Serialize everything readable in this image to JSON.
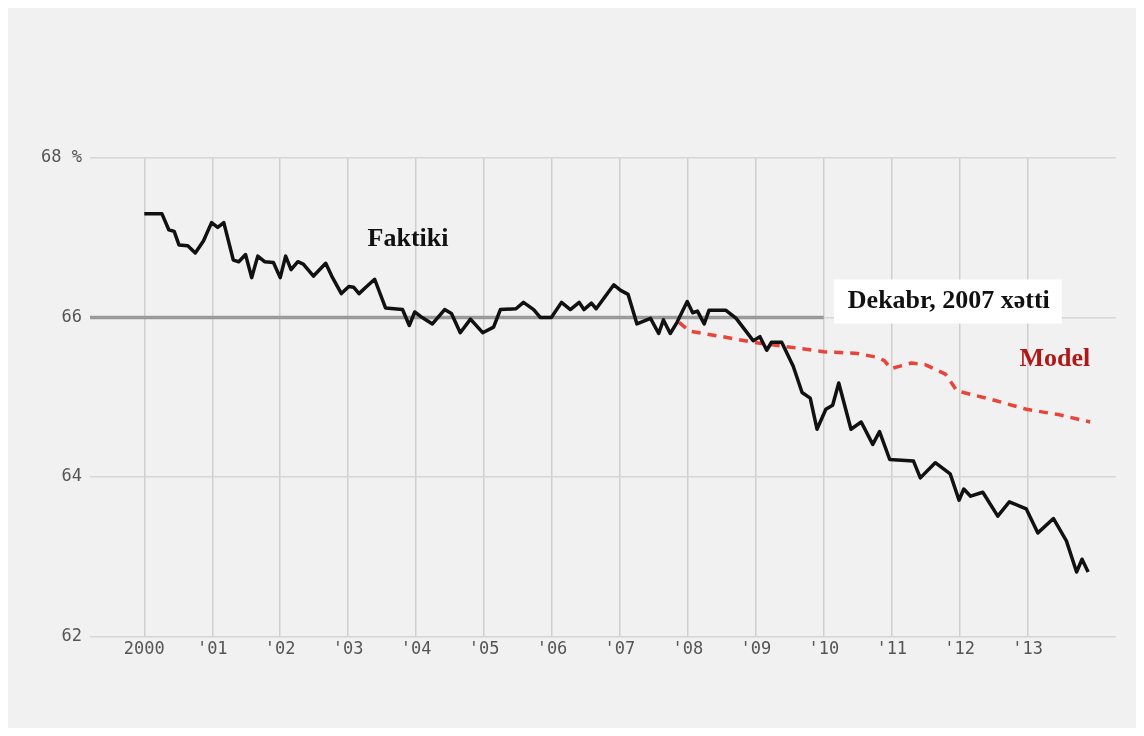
{
  "chart_data": {
    "type": "line",
    "xlim": [
      1999.2,
      2014.3
    ],
    "xticks": [
      {
        "value": 2000,
        "label": "2000"
      },
      {
        "value": 2001,
        "label": "'01"
      },
      {
        "value": 2002,
        "label": "'02"
      },
      {
        "value": 2003,
        "label": "'03"
      },
      {
        "value": 2004,
        "label": "'04"
      },
      {
        "value": 2005,
        "label": "'05"
      },
      {
        "value": 2006,
        "label": "'06"
      },
      {
        "value": 2007,
        "label": "'07"
      },
      {
        "value": 2008,
        "label": "'08"
      },
      {
        "value": 2009,
        "label": "'09"
      },
      {
        "value": 2010,
        "label": "'10"
      },
      {
        "value": 2011,
        "label": "'11"
      },
      {
        "value": 2012,
        "label": "'12"
      },
      {
        "value": 2013,
        "label": "'13"
      }
    ],
    "ylim": [
      62,
      68
    ],
    "yticks": [
      62,
      64,
      66,
      {
        "value": 68,
        "label": "68 %"
      }
    ],
    "grid": true,
    "legend": false,
    "marker": "none",
    "annotations": [
      {
        "text": "Dekabr, 2007 xətti",
        "x": 2010,
        "y": 66
      }
    ],
    "series": [
      {
        "name": "Faktiki",
        "color": "#111111",
        "line_style": "solid",
        "x": [
          2000.0,
          2000.26,
          2000.36,
          2000.44,
          2000.51,
          2000.64,
          2000.75,
          2000.87,
          2000.99,
          2001.08,
          2001.17,
          2001.31,
          2001.39,
          2001.49,
          2001.58,
          2001.67,
          2001.77,
          2001.9,
          2002.0,
          2002.08,
          2002.16,
          2002.26,
          2002.34,
          2002.49,
          2002.67,
          2002.77,
          2002.9,
          2003.01,
          2003.08,
          2003.16,
          2003.26,
          2003.39,
          2003.55,
          2003.8,
          2003.9,
          2003.98,
          2004.09,
          2004.24,
          2004.42,
          2004.52,
          2004.65,
          2004.8,
          2004.98,
          2005.14,
          2005.24,
          2005.47,
          2005.58,
          2005.73,
          2005.83,
          2005.99,
          2006.14,
          2006.27,
          2006.4,
          2006.47,
          2006.58,
          2006.65,
          2006.91,
          2007.01,
          2007.12,
          2007.25,
          2007.45,
          2007.57,
          2007.64,
          2007.74,
          2007.84,
          2007.99,
          2008.07,
          2008.14,
          2008.24,
          2008.31,
          2008.56,
          2008.71,
          2008.96,
          2009.06,
          2009.16,
          2009.23,
          2009.38,
          2009.55,
          2009.68,
          2009.8,
          2009.9,
          2010.03,
          2010.13,
          2010.22,
          2010.4,
          2010.55,
          2010.72,
          2010.82,
          2010.97,
          2011.32,
          2011.42,
          2011.64,
          2011.86,
          2011.99,
          2012.06,
          2012.16,
          2012.34,
          2012.56,
          2012.73,
          2012.98,
          2013.15,
          2013.38,
          2013.57,
          2013.72,
          2013.8,
          2013.89
        ],
        "values": [
          67.3,
          67.3,
          67.1,
          67.08,
          66.91,
          66.9,
          66.81,
          66.96,
          67.19,
          67.13,
          67.19,
          66.72,
          66.7,
          66.79,
          66.5,
          66.77,
          66.7,
          66.69,
          66.5,
          66.77,
          66.6,
          66.7,
          66.67,
          66.52,
          66.68,
          66.5,
          66.3,
          66.39,
          66.38,
          66.3,
          66.38,
          66.48,
          66.12,
          66.1,
          65.9,
          66.07,
          66.0,
          65.92,
          66.1,
          66.05,
          65.81,
          65.98,
          65.81,
          65.88,
          66.1,
          66.11,
          66.19,
          66.1,
          66.0,
          66.0,
          66.19,
          66.1,
          66.19,
          66.1,
          66.18,
          66.11,
          66.41,
          66.34,
          66.29,
          65.92,
          65.99,
          65.8,
          65.97,
          65.8,
          65.94,
          66.2,
          66.06,
          66.08,
          65.92,
          66.09,
          66.09,
          65.99,
          65.71,
          65.76,
          65.59,
          65.69,
          65.69,
          65.39,
          65.06,
          64.99,
          64.6,
          64.85,
          64.9,
          65.18,
          64.6,
          64.69,
          64.41,
          64.57,
          64.22,
          64.2,
          63.99,
          64.18,
          64.04,
          63.71,
          63.85,
          63.76,
          63.81,
          63.51,
          63.69,
          63.6,
          63.3,
          63.48,
          63.2,
          62.81,
          62.97,
          62.81
        ]
      },
      {
        "color": "#9a9a9a",
        "line_style": "solid",
        "x": [
          1999.2,
          2010.0
        ],
        "values": [
          66,
          66
        ]
      },
      {
        "name": "Model",
        "color": "#e8443a",
        "line_style": "dashed",
        "x": [
          2007.87,
          2008.02,
          2008.51,
          2008.96,
          2009.41,
          2010.0,
          2010.5,
          2010.79,
          2010.89,
          2010.99,
          2011.29,
          2011.49,
          2011.79,
          2011.96,
          2012.48,
          2012.98,
          2013.47,
          2013.92
        ],
        "values": [
          65.94,
          65.83,
          65.76,
          65.69,
          65.64,
          65.57,
          65.55,
          65.5,
          65.46,
          65.36,
          65.43,
          65.41,
          65.29,
          65.08,
          64.97,
          64.85,
          64.78,
          64.69
        ]
      }
    ]
  }
}
